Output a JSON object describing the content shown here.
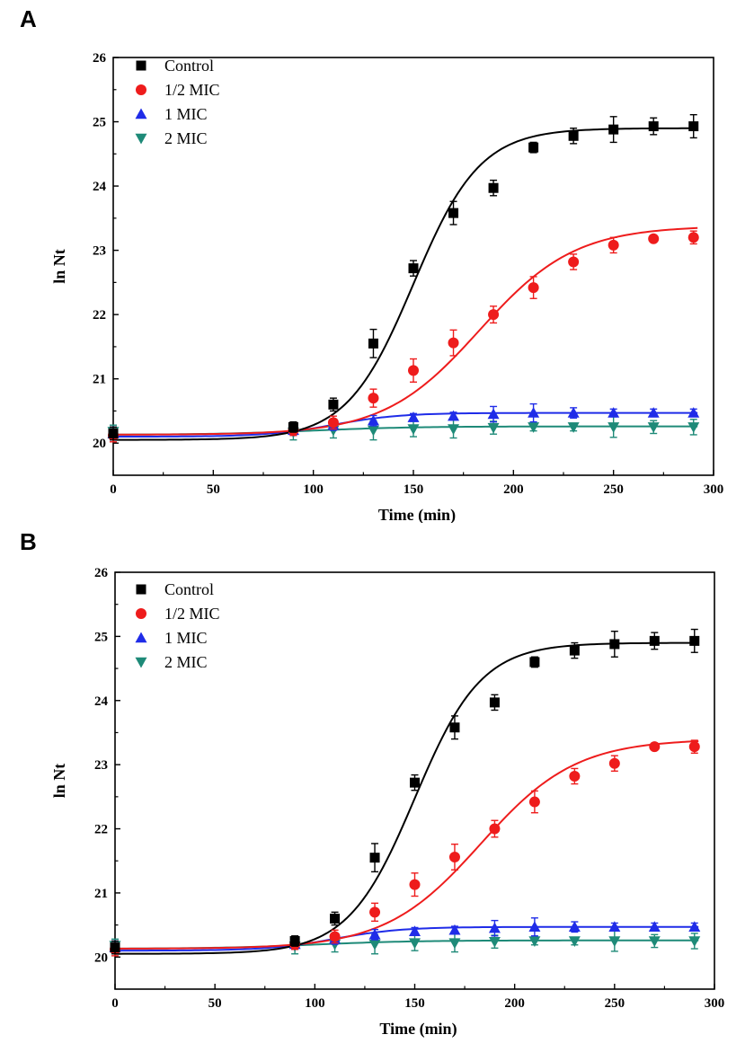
{
  "chart_data": [
    {
      "panel": "A",
      "type": "scatter",
      "xlabel": "Time (min)",
      "ylabel": "ln Nt",
      "xlim": [
        0,
        300
      ],
      "ylim": [
        19.5,
        26
      ],
      "xticks": [
        0,
        50,
        100,
        150,
        200,
        250,
        300
      ],
      "yticks": [
        20,
        21,
        22,
        23,
        24,
        25,
        26
      ],
      "legend_position": "top-left",
      "series": [
        {
          "name": "Control",
          "marker": "square",
          "color": "#000000",
          "x": [
            0,
            90,
            110,
            130,
            150,
            170,
            190,
            210,
            230,
            250,
            270,
            290
          ],
          "y": [
            20.15,
            20.25,
            20.6,
            21.55,
            22.72,
            23.58,
            23.97,
            24.6,
            24.78,
            24.88,
            24.93,
            24.93
          ],
          "err": [
            0.1,
            0.08,
            0.1,
            0.22,
            0.12,
            0.18,
            0.12,
            0.08,
            0.12,
            0.2,
            0.13,
            0.18
          ],
          "fit": {
            "A": 20.05,
            "B": 24.9,
            "t0": 150,
            "k": 0.06
          }
        },
        {
          "name": "1/2 MIC",
          "marker": "circle",
          "color": "#ee1c1c",
          "x": [
            0,
            90,
            110,
            130,
            150,
            170,
            190,
            210,
            230,
            250,
            270,
            290
          ],
          "y": [
            20.12,
            20.2,
            20.32,
            20.7,
            21.13,
            21.56,
            22.0,
            22.42,
            22.82,
            23.08,
            23.18,
            23.2
          ],
          "err": [
            0.1,
            0.08,
            0.1,
            0.14,
            0.18,
            0.2,
            0.13,
            0.17,
            0.12,
            0.12,
            0.04,
            0.1
          ],
          "fit": {
            "A": 20.13,
            "B": 23.38,
            "t0": 183,
            "k": 0.042
          }
        },
        {
          "name": "1 MIC",
          "marker": "triangle-up",
          "color": "#1f2ce8",
          "x": [
            0,
            90,
            110,
            130,
            150,
            170,
            190,
            210,
            230,
            250,
            270,
            290
          ],
          "y": [
            20.15,
            20.2,
            20.28,
            20.35,
            20.4,
            20.42,
            20.45,
            20.47,
            20.47,
            20.47,
            20.47,
            20.47
          ],
          "err": [
            0.1,
            0.08,
            0.08,
            0.08,
            0.06,
            0.06,
            0.12,
            0.14,
            0.08,
            0.06,
            0.06,
            0.06
          ],
          "fit": {
            "A": 20.1,
            "B": 20.47,
            "t0": 110,
            "k": 0.06
          }
        },
        {
          "name": "2 MIC",
          "marker": "triangle-down",
          "color": "#1e8a78",
          "x": [
            0,
            90,
            110,
            130,
            150,
            170,
            190,
            210,
            230,
            250,
            270,
            290
          ],
          "y": [
            20.18,
            20.17,
            20.2,
            20.2,
            20.22,
            20.22,
            20.24,
            20.25,
            20.25,
            20.25,
            20.25,
            20.25
          ],
          "err": [
            0.1,
            0.12,
            0.12,
            0.15,
            0.12,
            0.14,
            0.1,
            0.06,
            0.06,
            0.16,
            0.1,
            0.12
          ],
          "fit": {
            "A": 20.13,
            "B": 20.26,
            "t0": 100,
            "k": 0.04
          }
        }
      ]
    },
    {
      "panel": "B",
      "type": "scatter",
      "xlabel": "Time (min)",
      "ylabel": "ln Nt",
      "xlim": [
        0,
        300
      ],
      "ylim": [
        19.5,
        26
      ],
      "xticks": [
        0,
        50,
        100,
        150,
        200,
        250,
        300
      ],
      "yticks": [
        20,
        21,
        22,
        23,
        24,
        25,
        26
      ],
      "legend_position": "top-left",
      "series": [
        {
          "name": "Control",
          "marker": "square",
          "color": "#000000",
          "x": [
            0,
            90,
            110,
            130,
            150,
            170,
            190,
            210,
            230,
            250,
            270,
            290
          ],
          "y": [
            20.15,
            20.25,
            20.6,
            21.55,
            22.72,
            23.58,
            23.97,
            24.6,
            24.78,
            24.88,
            24.93,
            24.93
          ],
          "err": [
            0.1,
            0.08,
            0.1,
            0.22,
            0.12,
            0.18,
            0.12,
            0.08,
            0.12,
            0.2,
            0.13,
            0.18
          ],
          "fit": {
            "A": 20.05,
            "B": 24.9,
            "t0": 150,
            "k": 0.06
          }
        },
        {
          "name": "1/2 MIC",
          "marker": "circle",
          "color": "#ee1c1c",
          "x": [
            0,
            90,
            110,
            130,
            150,
            170,
            190,
            210,
            230,
            250,
            270,
            290
          ],
          "y": [
            20.12,
            20.2,
            20.32,
            20.7,
            21.13,
            21.56,
            22.0,
            22.42,
            22.82,
            23.02,
            23.28,
            23.28
          ],
          "err": [
            0.1,
            0.08,
            0.1,
            0.14,
            0.18,
            0.2,
            0.13,
            0.17,
            0.12,
            0.12,
            0.04,
            0.1
          ],
          "fit": {
            "A": 20.13,
            "B": 23.4,
            "t0": 183,
            "k": 0.042
          }
        },
        {
          "name": "1 MIC",
          "marker": "triangle-up",
          "color": "#1f2ce8",
          "x": [
            0,
            90,
            110,
            130,
            150,
            170,
            190,
            210,
            230,
            250,
            270,
            290
          ],
          "y": [
            20.15,
            20.2,
            20.28,
            20.35,
            20.4,
            20.42,
            20.45,
            20.47,
            20.47,
            20.47,
            20.47,
            20.47
          ],
          "err": [
            0.1,
            0.08,
            0.08,
            0.08,
            0.06,
            0.06,
            0.12,
            0.14,
            0.08,
            0.06,
            0.06,
            0.06
          ],
          "fit": {
            "A": 20.1,
            "B": 20.47,
            "t0": 110,
            "k": 0.06
          }
        },
        {
          "name": "2 MIC",
          "marker": "triangle-down",
          "color": "#1e8a78",
          "x": [
            0,
            90,
            110,
            130,
            150,
            170,
            190,
            210,
            230,
            250,
            270,
            290
          ],
          "y": [
            20.18,
            20.17,
            20.2,
            20.2,
            20.22,
            20.22,
            20.24,
            20.25,
            20.25,
            20.25,
            20.25,
            20.25
          ],
          "err": [
            0.1,
            0.12,
            0.12,
            0.15,
            0.12,
            0.14,
            0.1,
            0.06,
            0.06,
            0.16,
            0.1,
            0.12
          ],
          "fit": {
            "A": 20.13,
            "B": 20.26,
            "t0": 100,
            "k": 0.04
          }
        }
      ]
    }
  ]
}
